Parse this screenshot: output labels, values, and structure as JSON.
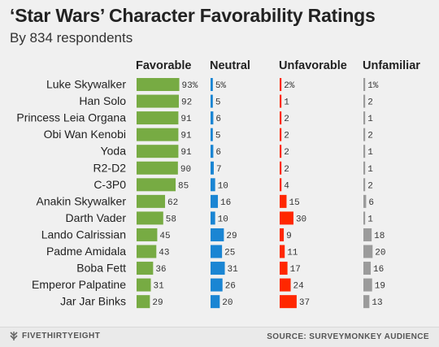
{
  "chart_data": {
    "type": "bar",
    "title": "‘Star Wars’ Character Favorability Ratings",
    "subtitle": "By 834 respondents",
    "categories": [
      "Luke Skywalker",
      "Han Solo",
      "Princess Leia Organa",
      "Obi Wan Kenobi",
      "Yoda",
      "R2-D2",
      "C-3P0",
      "Anakin Skywalker",
      "Darth Vader",
      "Lando Calrissian",
      "Padme Amidala",
      "Boba Fett",
      "Emperor Palpatine",
      "Jar Jar Binks"
    ],
    "series": [
      {
        "name": "Favorable",
        "color": "#77ab43",
        "values": [
          93,
          92,
          91,
          91,
          91,
          90,
          85,
          62,
          58,
          45,
          43,
          36,
          31,
          29
        ],
        "labels": [
          "93%",
          "92",
          "91",
          "91",
          "91",
          "90",
          "85",
          "62",
          "58",
          "45",
          "43",
          "36",
          "31",
          "29"
        ]
      },
      {
        "name": "Neutral",
        "color": "#1a85d3",
        "values": [
          5,
          5,
          6,
          5,
          6,
          7,
          10,
          16,
          10,
          29,
          25,
          31,
          26,
          20
        ],
        "labels": [
          "5%",
          "5",
          "6",
          "5",
          "6",
          "7",
          "10",
          "16",
          "10",
          "29",
          "25",
          "31",
          "26",
          "20"
        ]
      },
      {
        "name": "Unfavorable",
        "color": "#ff2700",
        "values": [
          2,
          1,
          2,
          2,
          2,
          2,
          4,
          15,
          30,
          9,
          11,
          17,
          24,
          37
        ],
        "labels": [
          "2%",
          "1",
          "2",
          "2",
          "2",
          "2",
          "4",
          "15",
          "30",
          "9",
          "11",
          "17",
          "24",
          "37"
        ]
      },
      {
        "name": "Unfamiliar",
        "color": "#9b9b9b",
        "values": [
          1,
          2,
          1,
          2,
          1,
          1,
          2,
          6,
          1,
          18,
          20,
          16,
          19,
          13
        ],
        "labels": [
          "1%",
          "2",
          "1",
          "2",
          "1",
          "1",
          "2",
          "6",
          "1",
          "18",
          "20",
          "16",
          "19",
          "13"
        ]
      }
    ]
  },
  "footer": {
    "brand": "FIVETHIRTYEIGHT",
    "source": "SOURCE: SURVEYMONKEY AUDIENCE"
  }
}
